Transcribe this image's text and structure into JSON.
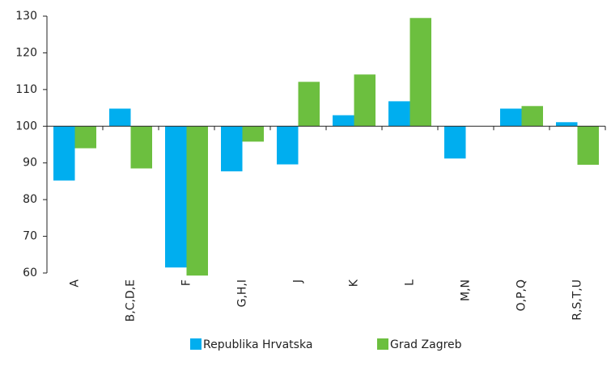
{
  "chart_data": {
    "type": "bar",
    "categories": [
      "A",
      "B,C,D,E",
      "F",
      "G,H,I",
      "J",
      "K",
      "L",
      "M,N",
      "O,P,Q",
      "R,S,T,U"
    ],
    "series": [
      {
        "name": "Republika Hrvatska",
        "color": "#00aeef",
        "values": [
          85.2,
          104.8,
          61.5,
          87.7,
          89.6,
          103,
          106.8,
          91.2,
          104.8,
          101.1
        ]
      },
      {
        "name": "Grad Zagreb",
        "color": "#6cbf3f",
        "values": [
          94,
          88.5,
          59.3,
          95.8,
          112.1,
          114.1,
          129.5,
          null,
          105.5,
          89.5
        ]
      }
    ],
    "baseline": 100,
    "ylim": [
      60,
      130
    ],
    "yticks": [
      60,
      70,
      80,
      90,
      100,
      110,
      120,
      130
    ]
  }
}
